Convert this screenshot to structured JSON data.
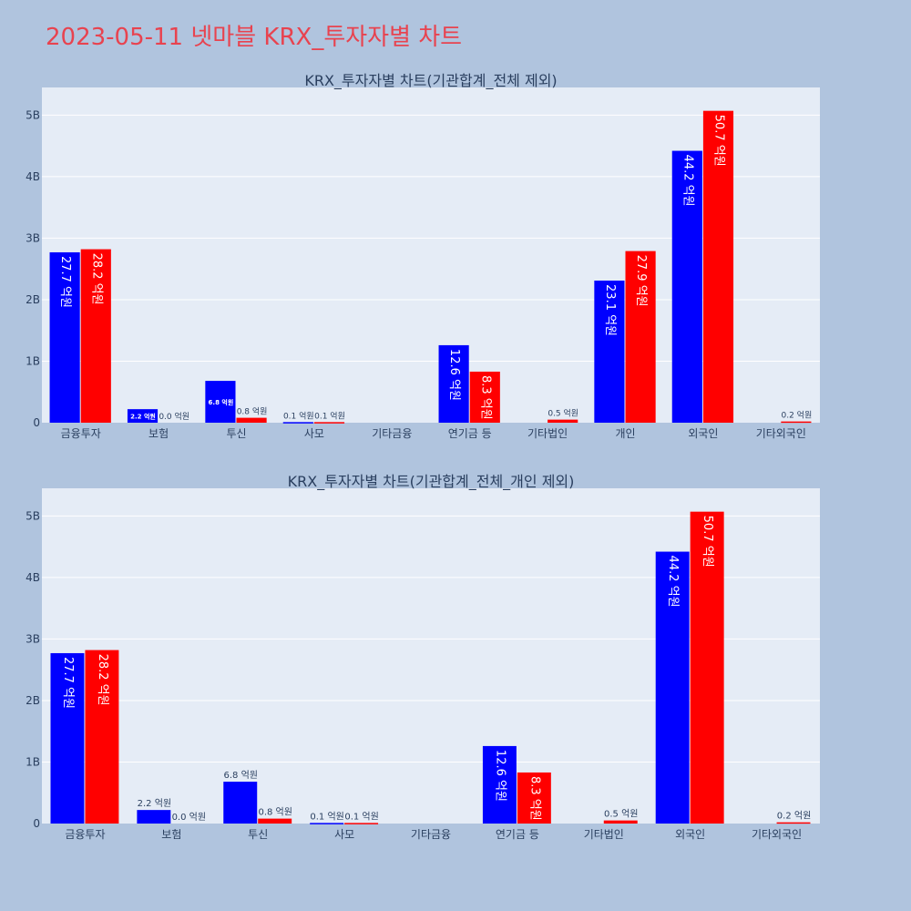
{
  "page": {
    "title": "2023-05-11 넷마블 KRX_투자자별 차트"
  },
  "colors": {
    "buy": "#0000ff",
    "sell": "#ff0000",
    "plot_bg": "#e5ecf6",
    "page_bg": "#b0c4de",
    "title": "#e8434f"
  },
  "chart_data": [
    {
      "type": "bar",
      "title": "KRX_투자자별 차트(기관합계_전체 제외)",
      "categories": [
        "금융투자",
        "보험",
        "투신",
        "사모",
        "기타금융",
        "연기금 등",
        "기타법인",
        "개인",
        "외국인",
        "기타외국인"
      ],
      "series": [
        {
          "color": "#0000ff",
          "values": [
            2770000000,
            220000000,
            680000000,
            10000000,
            0,
            1260000000,
            0,
            2310000000,
            4420000000,
            0
          ],
          "labels": [
            "27.7 억원",
            "2.2 억원",
            "6.8 억원",
            "0.1 억원",
            "",
            "12.6 억원",
            "",
            "23.1 억원",
            "44.2 억원",
            ""
          ]
        },
        {
          "color": "#ff0000",
          "values": [
            2820000000,
            0,
            80000000,
            10000000,
            0,
            830000000,
            50000000,
            2790000000,
            5070000000,
            20000000
          ],
          "labels": [
            "28.2 억원",
            "0.0 억원",
            "0.8 억원",
            "0.1 억원",
            "",
            "8.3 억원",
            "0.5 억원",
            "27.9 억원",
            "50.7 억원",
            "0.2 억원"
          ]
        }
      ],
      "ylim": [
        0,
        5450000000
      ],
      "yticks": [
        0,
        1000000000,
        2000000000,
        3000000000,
        4000000000,
        5000000000
      ],
      "yticklabels": [
        "0",
        "1B",
        "2B",
        "3B",
        "4B",
        "5B"
      ],
      "grid": true,
      "legend": false
    },
    {
      "type": "bar",
      "title": "KRX_투자자별 차트(기관합계_전체_개인 제외)",
      "categories": [
        "금융투자",
        "보험",
        "투신",
        "사모",
        "기타금융",
        "연기금 등",
        "기타법인",
        "외국인",
        "기타외국인"
      ],
      "series": [
        {
          "color": "#0000ff",
          "values": [
            2770000000,
            220000000,
            680000000,
            10000000,
            0,
            1260000000,
            0,
            4420000000,
            0
          ],
          "labels": [
            "27.7 억원",
            "2.2 억원",
            "6.8 억원",
            "0.1 억원",
            "",
            "12.6 억원",
            "",
            "44.2 억원",
            ""
          ]
        },
        {
          "color": "#ff0000",
          "values": [
            2820000000,
            0,
            80000000,
            10000000,
            0,
            830000000,
            50000000,
            5070000000,
            20000000
          ],
          "labels": [
            "28.2 억원",
            "0.0 억원",
            "0.8 억원",
            "0.1 억원",
            "",
            "8.3 억원",
            "0.5 억원",
            "50.7 억원",
            "0.2 억원"
          ]
        }
      ],
      "ylim": [
        0,
        5450000000
      ],
      "yticks": [
        0,
        1000000000,
        2000000000,
        3000000000,
        4000000000,
        5000000000
      ],
      "yticklabels": [
        "0",
        "1B",
        "2B",
        "3B",
        "4B",
        "5B"
      ],
      "grid": true,
      "legend": false
    }
  ]
}
